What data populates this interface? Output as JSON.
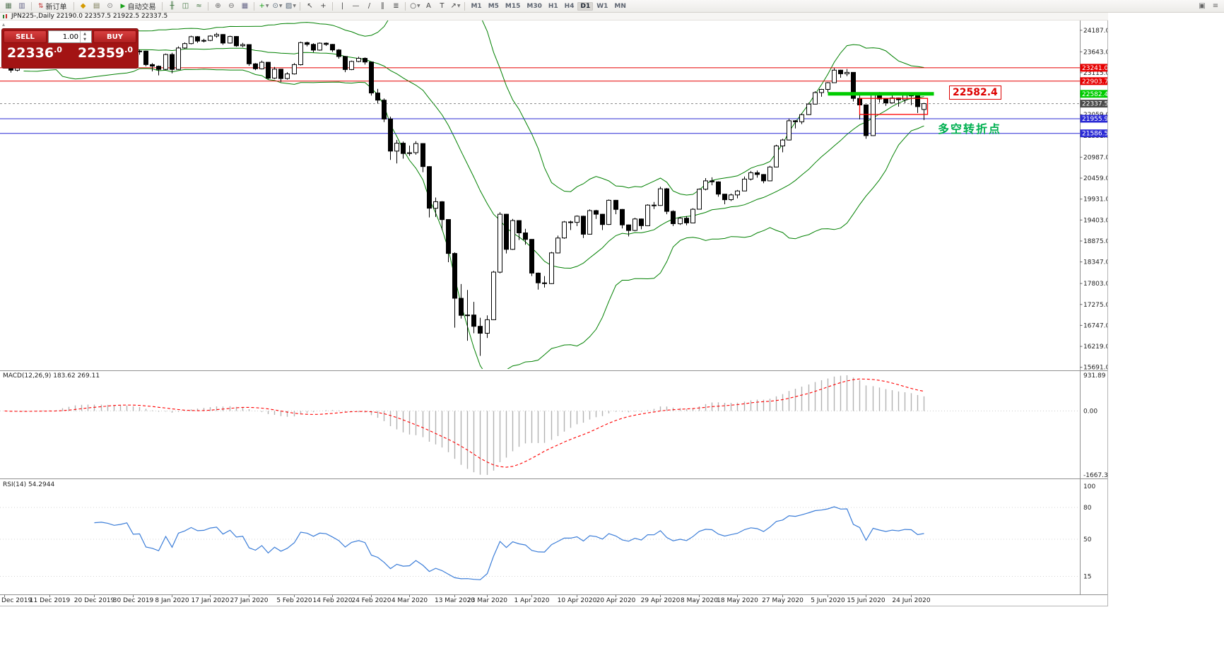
{
  "window_title": "JPN225-,Daily  22190.0 22357.5 21922.5 22337.5",
  "toolbar": {
    "items": [
      {
        "type": "icon",
        "name": "new-chart-icon",
        "glyph": "▦",
        "color": "#5a7a5a"
      },
      {
        "type": "icon",
        "name": "chart-profiles-icon",
        "glyph": "▥",
        "color": "#6a6a8c"
      },
      {
        "type": "sep"
      },
      {
        "type": "button",
        "name": "new-order-button",
        "glyph": "⇅",
        "glyph_color": "#c03030",
        "label": "新订单"
      },
      {
        "type": "sep"
      },
      {
        "type": "icon",
        "name": "metaeditor-icon",
        "glyph": "◆",
        "color": "#d49a00"
      },
      {
        "type": "icon",
        "name": "data-window-icon",
        "glyph": "▤",
        "color": "#7a7a54"
      },
      {
        "type": "icon",
        "name": "history-center-icon",
        "glyph": "⊙",
        "color": "#777777"
      },
      {
        "type": "button",
        "name": "auto-trading-button",
        "glyph": "▶",
        "glyph_color": "#18a018",
        "label": "自动交易"
      },
      {
        "type": "sep"
      },
      {
        "type": "icon",
        "name": "bar-chart-icon",
        "glyph": "╫",
        "color": "#447744"
      },
      {
        "type": "icon",
        "name": "candlestick-chart-icon",
        "glyph": "◫",
        "color": "#447744"
      },
      {
        "type": "icon",
        "name": "line-chart-icon",
        "glyph": "≈",
        "color": "#447744"
      },
      {
        "type": "sep"
      },
      {
        "type": "icon",
        "name": "zoom-in-icon",
        "glyph": "⊕",
        "color": "#666666"
      },
      {
        "type": "icon",
        "name": "zoom-out-icon",
        "glyph": "⊖",
        "color": "#666666"
      },
      {
        "type": "icon",
        "name": "tile-windows-icon",
        "glyph": "▦",
        "color": "#666688"
      },
      {
        "type": "sep"
      },
      {
        "type": "icon",
        "name": "indicators-icon",
        "glyph": "+",
        "color": "#18a018",
        "caret": true
      },
      {
        "type": "icon",
        "name": "periods-icon",
        "glyph": "⊙",
        "color": "#556677",
        "caret": true
      },
      {
        "type": "icon",
        "name": "templates-icon",
        "glyph": "▨",
        "color": "#556677",
        "caret": true
      },
      {
        "type": "sep"
      },
      {
        "type": "icon",
        "name": "cursor-icon",
        "glyph": "↖",
        "color": "#444444"
      },
      {
        "type": "icon",
        "name": "crosshair-icon",
        "glyph": "+",
        "color": "#444444"
      },
      {
        "type": "sep"
      },
      {
        "type": "icon",
        "name": "vertical-line-icon",
        "glyph": "|",
        "color": "#444444"
      },
      {
        "type": "icon",
        "name": "horizontal-line-icon",
        "glyph": "—",
        "color": "#444444"
      },
      {
        "type": "icon",
        "name": "trendline-icon",
        "glyph": "/",
        "color": "#444444"
      },
      {
        "type": "icon",
        "name": "equidistant-channel-icon",
        "glyph": "∥",
        "color": "#444444"
      },
      {
        "type": "icon",
        "name": "fibonacci-icon",
        "glyph": "≣",
        "color": "#444444"
      },
      {
        "type": "sep"
      },
      {
        "type": "icon",
        "name": "shapes-icon",
        "glyph": "○",
        "color": "#444444",
        "caret": true
      },
      {
        "type": "icon",
        "name": "text-icon",
        "glyph": "A",
        "color": "#444444"
      },
      {
        "type": "icon",
        "name": "text-label-icon",
        "glyph": "T",
        "color": "#444444"
      },
      {
        "type": "icon",
        "name": "arrows-icon",
        "glyph": "↗",
        "color": "#444444",
        "caret": true
      },
      {
        "type": "sep"
      },
      {
        "type": "tf",
        "name": "timeframe-m1",
        "label": "M1"
      },
      {
        "type": "tf",
        "name": "timeframe-m5",
        "label": "M5"
      },
      {
        "type": "tf",
        "name": "timeframe-m15",
        "label": "M15"
      },
      {
        "type": "tf",
        "name": "timeframe-m30",
        "label": "M30"
      },
      {
        "type": "tf",
        "name": "timeframe-h1",
        "label": "H1"
      },
      {
        "type": "tf",
        "name": "timeframe-h4",
        "label": "H4"
      },
      {
        "type": "tf",
        "name": "timeframe-d1",
        "label": "D1",
        "active": true
      },
      {
        "type": "tf",
        "name": "timeframe-w1",
        "label": "W1"
      },
      {
        "type": "tf",
        "name": "timeframe-mn",
        "label": "MN"
      },
      {
        "type": "spacer"
      },
      {
        "type": "icon",
        "name": "new-window-icon",
        "glyph": "▣",
        "color": "#666666"
      },
      {
        "type": "icon",
        "name": "window-list-icon",
        "glyph": "≡",
        "color": "#666666"
      }
    ]
  },
  "trade_panel": {
    "sell_label": "SELL",
    "buy_label": "BUY",
    "volume": "1.00",
    "sell_price": "22336.0",
    "sell_price_main": "22336",
    "sell_price_frac": ".0",
    "buy_price": "22359.0",
    "buy_price_main": "22359",
    "buy_price_frac": ".0"
  },
  "chart_data": {
    "type": "candlestick",
    "symbol": "JPN225-",
    "timeframe": "Daily",
    "callout_label": "22582.4",
    "annotation": {
      "text": "多空转折点",
      "color": "#00b050"
    },
    "y_axis_ticks": [
      "24187.0",
      "23643.0",
      "23115.0",
      "22587.0",
      "22059.0",
      "21531.0",
      "20987.0",
      "20459.0",
      "19931.0",
      "19403.0",
      "18875.0",
      "18347.0",
      "17803.0",
      "17275.0",
      "16747.0",
      "16219.0",
      "15691.0"
    ],
    "y_range": [
      15650,
      24450
    ],
    "hlines": [
      {
        "value": 23241.0,
        "label": "23241.0",
        "color": "#e60000"
      },
      {
        "value": 22903.7,
        "label": "22903.7",
        "color": "#e60000"
      },
      {
        "value": 21955.9,
        "label": "21955.9",
        "color": "#2b2bd5"
      },
      {
        "value": 21586.5,
        "label": "21586.5",
        "color": "#2b2bd5"
      }
    ],
    "current_price": {
      "value": 22337.5,
      "label": "22337.5",
      "badge_color": "#4a4a4a"
    },
    "support_line": {
      "value": 22582.4,
      "label": "22582.4",
      "from": 128,
      "to": 144.5,
      "color": "#00cc00"
    },
    "rectangle": {
      "from": 133,
      "to": 143.5,
      "top": 22470,
      "bottom": 22065,
      "color": "#ff0000"
    },
    "indicators": {
      "bollinger": {
        "period": 20,
        "deviations": 2,
        "color": "#008000"
      },
      "macd": {
        "label": "MACD(12,26,9) 183.62 269.11",
        "value": 183.62,
        "signal": 269.11,
        "axis_labels": [
          "931.89",
          "0.00",
          "-1667.31"
        ],
        "histogram_color": "#b2b2b2",
        "signal_color": "#ff0000"
      },
      "rsi": {
        "label": "RSI(14) 54.2944",
        "value": 54.2944,
        "levels": [
          100,
          80,
          50,
          15
        ],
        "color": "#3b7dd8"
      }
    },
    "date_ticks": [
      {
        "label": "Dec 2019",
        "i": 0
      },
      {
        "label": "11 Dec 2019",
        "i": 7
      },
      {
        "label": "20 Dec 2019",
        "i": 14
      },
      {
        "label": "30 Dec 2019",
        "i": 20
      },
      {
        "label": "8 Jan 2020",
        "i": 26
      },
      {
        "label": "17 Jan 2020",
        "i": 32
      },
      {
        "label": "27 Jan 2020",
        "i": 38
      },
      {
        "label": "5 Feb 2020",
        "i": 45
      },
      {
        "label": "14 Feb 2020",
        "i": 51
      },
      {
        "label": "24 Feb 2020",
        "i": 57
      },
      {
        "label": "4 Mar 2020",
        "i": 63
      },
      {
        "label": "13 Mar 2020",
        "i": 70
      },
      {
        "label": "23 Mar 2020",
        "i": 75
      },
      {
        "label": "1 Apr 2020",
        "i": 82
      },
      {
        "label": "10 Apr 2020",
        "i": 89
      },
      {
        "label": "20 Apr 2020",
        "i": 95
      },
      {
        "label": "29 Apr 2020",
        "i": 102
      },
      {
        "label": "8 May 2020",
        "i": 108
      },
      {
        "label": "18 May 2020",
        "i": 114
      },
      {
        "label": "27 May 2020",
        "i": 121
      },
      {
        "label": "5 Jun 2020",
        "i": 128
      },
      {
        "label": "15 Jun 2020",
        "i": 134
      },
      {
        "label": "24 Jun 2020",
        "i": 141
      }
    ],
    "ohlc": [
      [
        23520,
        23560,
        23310,
        23350
      ],
      [
        23350,
        23370,
        23120,
        23180
      ],
      [
        23180,
        23320,
        23150,
        23300
      ],
      [
        23300,
        23390,
        23230,
        23320
      ],
      [
        23320,
        23450,
        23280,
        23430
      ],
      [
        23430,
        23500,
        23380,
        23480
      ],
      [
        23480,
        23510,
        23360,
        23420
      ],
      [
        23420,
        23450,
        23330,
        23390
      ],
      [
        23390,
        23480,
        23340,
        23450
      ],
      [
        23450,
        24050,
        23430,
        23990
      ],
      [
        23990,
        24010,
        23860,
        23950
      ],
      [
        23950,
        24090,
        23900,
        24060
      ],
      [
        24060,
        24070,
        23880,
        23930
      ],
      [
        23930,
        23960,
        23820,
        23870
      ],
      [
        23870,
        23900,
        23790,
        23830
      ],
      [
        23830,
        23880,
        23800,
        23850
      ],
      [
        23850,
        23870,
        23780,
        23830
      ],
      [
        23830,
        23850,
        23760,
        23790
      ],
      [
        23790,
        23840,
        23760,
        23820
      ],
      [
        23820,
        23890,
        23790,
        23870
      ],
      [
        23870,
        23880,
        23610,
        23650
      ],
      [
        23650,
        23700,
        23570,
        23660
      ],
      [
        23660,
        23670,
        23280,
        23320
      ],
      [
        23320,
        23360,
        23150,
        23280
      ],
      [
        23280,
        23300,
        23050,
        23200
      ],
      [
        23200,
        23600,
        23180,
        23575
      ],
      [
        23575,
        23620,
        23100,
        23200
      ],
      [
        23200,
        23780,
        23190,
        23740
      ],
      [
        23740,
        23880,
        23720,
        23850
      ],
      [
        23850,
        24050,
        23830,
        24025
      ],
      [
        24025,
        24040,
        23870,
        23915
      ],
      [
        23915,
        23970,
        23880,
        23930
      ],
      [
        23930,
        24060,
        23910,
        24040
      ],
      [
        24040,
        24120,
        24000,
        24080
      ],
      [
        24080,
        24090,
        23820,
        23865
      ],
      [
        23865,
        24050,
        23850,
        24030
      ],
      [
        24030,
        24040,
        23770,
        23795
      ],
      [
        23795,
        23870,
        23760,
        23825
      ],
      [
        23825,
        23830,
        23290,
        23340
      ],
      [
        23340,
        23360,
        23180,
        23215
      ],
      [
        23215,
        23420,
        23200,
        23380
      ],
      [
        23380,
        23390,
        22950,
        22980
      ],
      [
        22980,
        23260,
        22960,
        23205
      ],
      [
        23205,
        23210,
        22880,
        22970
      ],
      [
        22970,
        23130,
        22940,
        23085
      ],
      [
        23085,
        23360,
        23070,
        23320
      ],
      [
        23320,
        23900,
        23300,
        23875
      ],
      [
        23875,
        23900,
        23780,
        23830
      ],
      [
        23830,
        23860,
        23630,
        23685
      ],
      [
        23685,
        23880,
        23670,
        23860
      ],
      [
        23860,
        23880,
        23790,
        23830
      ],
      [
        23830,
        23840,
        23640,
        23690
      ],
      [
        23690,
        23710,
        23470,
        23525
      ],
      [
        23525,
        23540,
        23130,
        23195
      ],
      [
        23195,
        23420,
        23180,
        23400
      ],
      [
        23400,
        23520,
        23380,
        23480
      ],
      [
        23480,
        23500,
        23320,
        23385
      ],
      [
        23385,
        23390,
        22540,
        22605
      ],
      [
        22605,
        22710,
        22340,
        22425
      ],
      [
        22425,
        22470,
        21870,
        21950
      ],
      [
        21950,
        22010,
        20920,
        21140
      ],
      [
        21140,
        21420,
        20830,
        21340
      ],
      [
        21340,
        21380,
        20950,
        21080
      ],
      [
        21080,
        21280,
        21020,
        21100
      ],
      [
        21100,
        21390,
        21050,
        21330
      ],
      [
        21330,
        21340,
        20610,
        20750
      ],
      [
        20750,
        20760,
        19470,
        19700
      ],
      [
        19700,
        19970,
        19480,
        19865
      ],
      [
        19865,
        19880,
        19150,
        19415
      ],
      [
        19415,
        19420,
        18340,
        18560
      ],
      [
        18560,
        18590,
        16690,
        17430
      ],
      [
        17430,
        17790,
        16920,
        17000
      ],
      [
        17000,
        17640,
        16360,
        17010
      ],
      [
        17010,
        17340,
        16550,
        16725
      ],
      [
        16725,
        16940,
        15980,
        16550
      ],
      [
        16550,
        17000,
        16430,
        16890
      ],
      [
        16890,
        18120,
        16880,
        18090
      ],
      [
        18090,
        19600,
        18060,
        19550
      ],
      [
        19550,
        19560,
        18560,
        18665
      ],
      [
        18665,
        19430,
        18650,
        19390
      ],
      [
        19390,
        19400,
        18900,
        19080
      ],
      [
        19080,
        19180,
        18780,
        18915
      ],
      [
        18915,
        18920,
        17990,
        18065
      ],
      [
        18065,
        18080,
        17650,
        17820
      ],
      [
        17820,
        17990,
        17700,
        17800
      ],
      [
        17800,
        18600,
        17790,
        18575
      ],
      [
        18575,
        19010,
        18560,
        18950
      ],
      [
        18950,
        19380,
        18930,
        19355
      ],
      [
        19355,
        19390,
        19150,
        19345
      ],
      [
        19345,
        19520,
        19250,
        19500
      ],
      [
        19500,
        19510,
        18950,
        19045
      ],
      [
        19045,
        19670,
        19040,
        19640
      ],
      [
        19640,
        19660,
        19430,
        19550
      ],
      [
        19550,
        19560,
        19150,
        19290
      ],
      [
        19290,
        19920,
        19280,
        19900
      ],
      [
        19900,
        19910,
        19550,
        19670
      ],
      [
        19670,
        19680,
        19190,
        19280
      ],
      [
        19280,
        19290,
        18990,
        19140
      ],
      [
        19140,
        19460,
        19120,
        19430
      ],
      [
        19430,
        19440,
        19170,
        19260
      ],
      [
        19260,
        19800,
        19250,
        19780
      ],
      [
        19780,
        19860,
        19680,
        19770
      ],
      [
        19770,
        20240,
        19760,
        20190
      ],
      [
        20190,
        20210,
        19550,
        19620
      ],
      [
        19620,
        19650,
        19250,
        19310
      ],
      [
        19310,
        19480,
        19280,
        19450
      ],
      [
        19450,
        19500,
        19270,
        19330
      ],
      [
        19330,
        19700,
        19320,
        19675
      ],
      [
        19675,
        20200,
        19670,
        20180
      ],
      [
        20180,
        20460,
        20150,
        20390
      ],
      [
        20390,
        20480,
        20280,
        20365
      ],
      [
        20365,
        20380,
        19990,
        20055
      ],
      [
        20055,
        20060,
        19800,
        19915
      ],
      [
        19915,
        20070,
        19880,
        20035
      ],
      [
        20035,
        20160,
        19950,
        20135
      ],
      [
        20135,
        20500,
        20130,
        20435
      ],
      [
        20435,
        20640,
        20400,
        20595
      ],
      [
        20595,
        20650,
        20470,
        20550
      ],
      [
        20550,
        20560,
        20330,
        20390
      ],
      [
        20390,
        20770,
        20380,
        20740
      ],
      [
        20740,
        21300,
        20730,
        21270
      ],
      [
        21270,
        21450,
        21110,
        21420
      ],
      [
        21420,
        21960,
        21410,
        21905
      ],
      [
        21905,
        21920,
        21710,
        21880
      ],
      [
        21880,
        22090,
        21820,
        22060
      ],
      [
        22060,
        22360,
        22050,
        22325
      ],
      [
        22325,
        22650,
        22320,
        22615
      ],
      [
        22615,
        22710,
        22510,
        22695
      ],
      [
        22695,
        22880,
        22610,
        22865
      ],
      [
        22865,
        23230,
        22860,
        23180
      ],
      [
        23180,
        23190,
        22990,
        23090
      ],
      [
        23090,
        23210,
        23030,
        23125
      ],
      [
        23125,
        23130,
        22390,
        22470
      ],
      [
        22470,
        22620,
        21940,
        22305
      ],
      [
        22305,
        22310,
        21450,
        21530
      ],
      [
        21530,
        22600,
        21520,
        22580
      ],
      [
        22580,
        22630,
        22360,
        22455
      ],
      [
        22455,
        22460,
        22280,
        22355
      ],
      [
        22355,
        22560,
        22340,
        22480
      ],
      [
        22480,
        22490,
        22260,
        22435
      ],
      [
        22435,
        22600,
        22350,
        22550
      ],
      [
        22550,
        22580,
        22300,
        22535
      ],
      [
        22535,
        22540,
        22100,
        22260
      ],
      [
        22190,
        22357.5,
        21922.5,
        22337.5
      ]
    ]
  }
}
